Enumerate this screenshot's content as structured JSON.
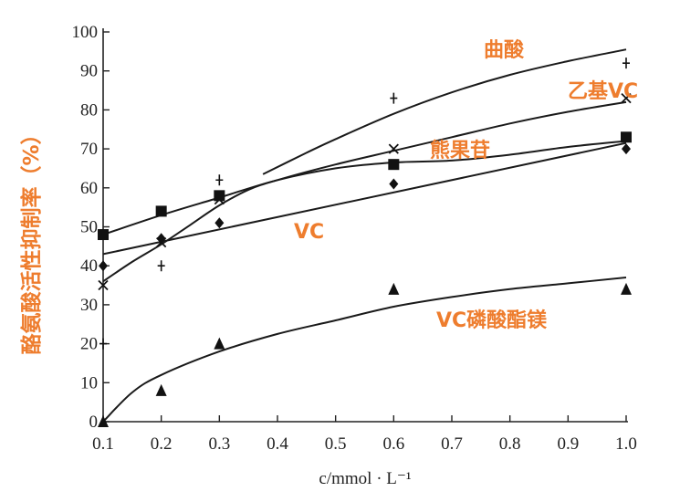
{
  "chart_data": {
    "type": "line",
    "xlabel": "c/mmol · L⁻¹",
    "ylabel": "酪氨酸活性抑制率（%）",
    "xlim": [
      0.1,
      1.0
    ],
    "ylim": [
      0,
      100
    ],
    "x_ticks": [
      "0.1",
      "0.2",
      "0.3",
      "0.4",
      "0.5",
      "0.6",
      "0.7",
      "0.8",
      "0.9",
      "1.0"
    ],
    "y_ticks": [
      "0",
      "10",
      "20",
      "30",
      "40",
      "50",
      "60",
      "70",
      "80",
      "90",
      "100"
    ],
    "grid": false,
    "label_color": "#ee7d2e",
    "series": [
      {
        "name": "曲酸",
        "marker": "plus",
        "points": [
          [
            0.1,
            20
          ],
          [
            0.2,
            40
          ],
          [
            0.3,
            62
          ],
          [
            0.6,
            83
          ],
          [
            1.0,
            92
          ]
        ],
        "curve": [
          [
            0.375,
            63.5
          ],
          [
            0.45,
            69
          ],
          [
            0.5,
            72.5
          ],
          [
            0.6,
            79
          ],
          [
            0.7,
            84.5
          ],
          [
            0.8,
            89
          ],
          [
            0.9,
            92.5
          ],
          [
            1.0,
            95.5
          ]
        ]
      },
      {
        "name": "乙基VC",
        "marker": "x",
        "points": [
          [
            0.1,
            35
          ],
          [
            0.2,
            46
          ],
          [
            0.3,
            57
          ],
          [
            0.6,
            70
          ],
          [
            1.0,
            83
          ]
        ],
        "curve": [
          [
            0.1,
            36
          ],
          [
            0.15,
            41
          ],
          [
            0.2,
            45.5
          ],
          [
            0.25,
            50.5
          ],
          [
            0.3,
            55.5
          ],
          [
            0.35,
            59.5
          ],
          [
            0.4,
            62
          ],
          [
            0.5,
            66
          ],
          [
            0.6,
            69.5
          ],
          [
            0.7,
            73
          ],
          [
            0.8,
            76.5
          ],
          [
            0.9,
            79.5
          ],
          [
            1.0,
            82
          ]
        ]
      },
      {
        "name": "熊果苷",
        "marker": "square",
        "points": [
          [
            0.1,
            48
          ],
          [
            0.2,
            54
          ],
          [
            0.3,
            58
          ],
          [
            0.6,
            66
          ],
          [
            1.0,
            73
          ]
        ],
        "curve": [
          [
            0.1,
            48
          ],
          [
            0.2,
            53
          ],
          [
            0.3,
            57.5
          ],
          [
            0.4,
            62
          ],
          [
            0.5,
            65
          ],
          [
            0.6,
            66.5
          ],
          [
            0.7,
            67
          ],
          [
            0.8,
            68.5
          ],
          [
            0.9,
            70.5
          ],
          [
            1.0,
            72
          ]
        ]
      },
      {
        "name": "VC",
        "marker": "diamond",
        "points": [
          [
            0.1,
            40
          ],
          [
            0.2,
            47
          ],
          [
            0.3,
            51
          ],
          [
            0.6,
            61
          ],
          [
            1.0,
            70
          ]
        ],
        "curve": [
          [
            0.1,
            43
          ],
          [
            1.0,
            71.5
          ]
        ]
      },
      {
        "name": "VC磷酸酯镁",
        "marker": "triangle",
        "points": [
          [
            0.1,
            0
          ],
          [
            0.2,
            8
          ],
          [
            0.3,
            20
          ],
          [
            0.6,
            34
          ],
          [
            1.0,
            34
          ]
        ],
        "curve": [
          [
            0.1,
            0
          ],
          [
            0.15,
            7.5
          ],
          [
            0.2,
            12
          ],
          [
            0.3,
            18
          ],
          [
            0.4,
            22.5
          ],
          [
            0.5,
            26
          ],
          [
            0.6,
            29.5
          ],
          [
            0.7,
            32
          ],
          [
            0.8,
            34
          ],
          [
            0.9,
            35.5
          ],
          [
            1.0,
            37
          ]
        ]
      }
    ]
  }
}
